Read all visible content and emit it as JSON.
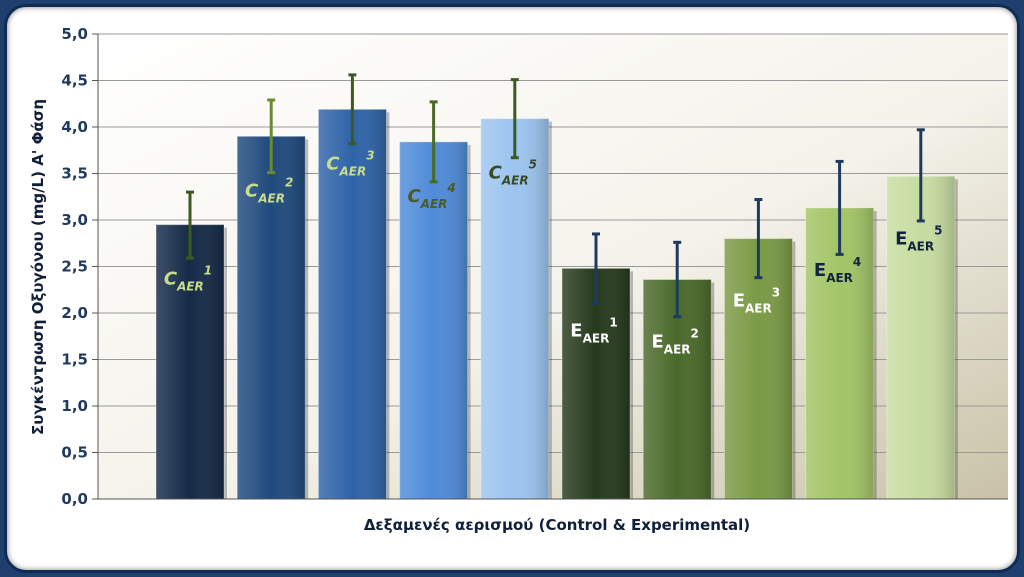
{
  "chart_data": {
    "type": "bar",
    "categories": [
      "C_AER1",
      "C_AER2",
      "C_AER3",
      "C_AER4",
      "C_AER5",
      "E_AER1",
      "E_AER2",
      "E_AER3",
      "E_AER4",
      "E_AER5"
    ],
    "bar_labels": [
      {
        "base": "C",
        "sub": "AER",
        "sup": "1",
        "italic": true
      },
      {
        "base": "C",
        "sub": "AER",
        "sup": "2",
        "italic": true
      },
      {
        "base": "C",
        "sub": "AER",
        "sup": "3",
        "italic": true
      },
      {
        "base": "C",
        "sub": "AER",
        "sup": "4",
        "italic": true
      },
      {
        "base": "C",
        "sub": "AER",
        "sup": "5",
        "italic": true
      },
      {
        "base": "E",
        "sub": "AER",
        "sup": "1",
        "italic": false
      },
      {
        "base": "E",
        "sub": "AER",
        "sup": "2",
        "italic": false
      },
      {
        "base": "E",
        "sub": "AER",
        "sup": "3",
        "italic": false
      },
      {
        "base": "E",
        "sub": "AER",
        "sup": "4",
        "italic": false
      },
      {
        "base": "E",
        "sub": "AER",
        "sup": "5",
        "italic": false
      }
    ],
    "values": [
      2.95,
      3.9,
      4.19,
      3.84,
      4.09,
      2.48,
      2.36,
      2.8,
      3.13,
      3.47
    ],
    "error_low": [
      2.59,
      3.51,
      3.82,
      3.41,
      3.67,
      2.1,
      1.96,
      2.38,
      2.63,
      2.99
    ],
    "error_high": [
      3.3,
      4.29,
      4.56,
      4.27,
      4.51,
      2.85,
      2.76,
      3.22,
      3.63,
      3.97
    ],
    "bar_colors": [
      "#152a47",
      "#1f4a7d",
      "#2f63a8",
      "#4f8bd8",
      "#9cc4ef",
      "#263a1d",
      "#4a6a2a",
      "#7a9a45",
      "#a3c466",
      "#c7dca0"
    ],
    "bar_label_colors": [
      "#c9dc8c",
      "#c9dc8c",
      "#c9dc8c",
      "#4a5a2a",
      "#3a4a25",
      "#ffffff",
      "#ffffff",
      "#ffffff",
      "#10243f",
      "#10243f"
    ],
    "error_colors": [
      "#3a5a20",
      "#6a8a30",
      "#3a5a20",
      "#4a6a25",
      "#3a5a20",
      "#1f3a5f",
      "#1f3a5f",
      "#1f3a5f",
      "#1f3a5f",
      "#1f3a5f"
    ],
    "ylim": [
      0,
      5
    ],
    "yticks": [
      "0,0",
      "0,5",
      "1,0",
      "1,5",
      "2,0",
      "2,5",
      "3,0",
      "3,5",
      "4,0",
      "4,5",
      "5,0"
    ],
    "xlabel": "Δεξαμενές αερισμού (Control & Experimental)",
    "ylabel": "Συγκέντρωση Οξυγόνου (mg/L) Α' Φάση",
    "grid": true,
    "legend": "none"
  }
}
